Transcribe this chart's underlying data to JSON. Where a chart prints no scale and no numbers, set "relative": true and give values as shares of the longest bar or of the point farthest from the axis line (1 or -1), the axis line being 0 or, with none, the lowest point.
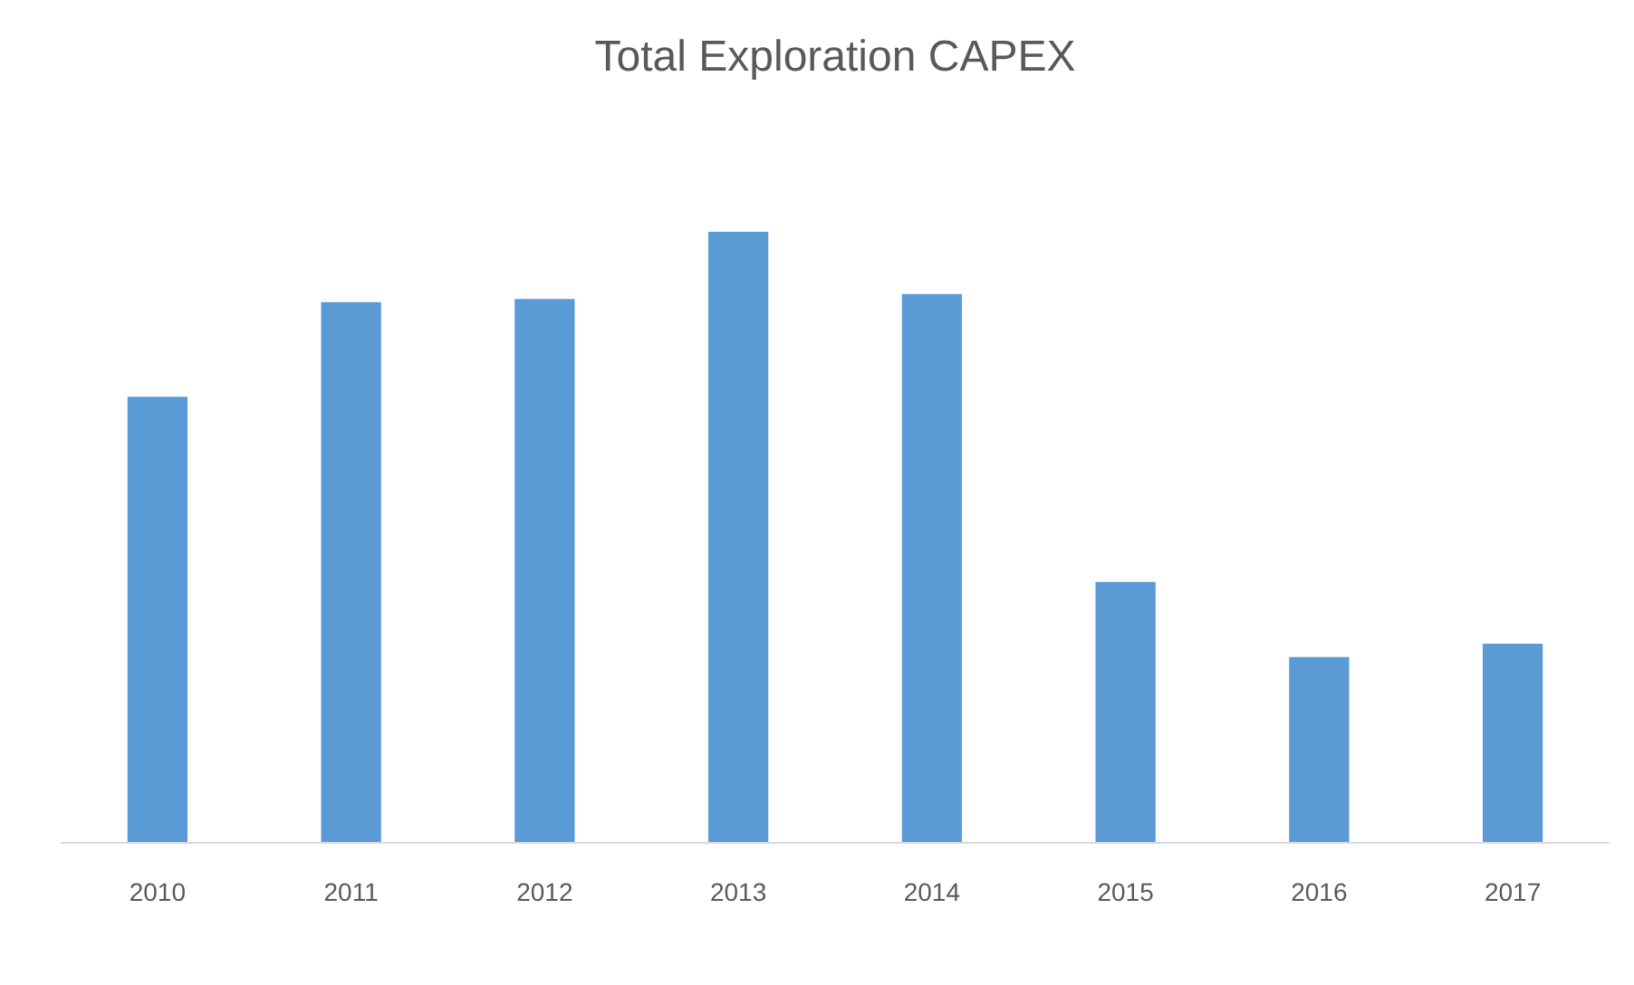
{
  "chart_data": {
    "type": "bar",
    "title": "Total Exploration CAPEX",
    "categories": [
      "2010",
      "2011",
      "2012",
      "2013",
      "2014",
      "2015",
      "2016",
      "2017"
    ],
    "values": [
      0.73,
      0.885,
      0.89,
      1,
      0.898,
      0.427,
      0.304,
      0.326
    ],
    "color": "#5b9bd5",
    "relative": true
  }
}
